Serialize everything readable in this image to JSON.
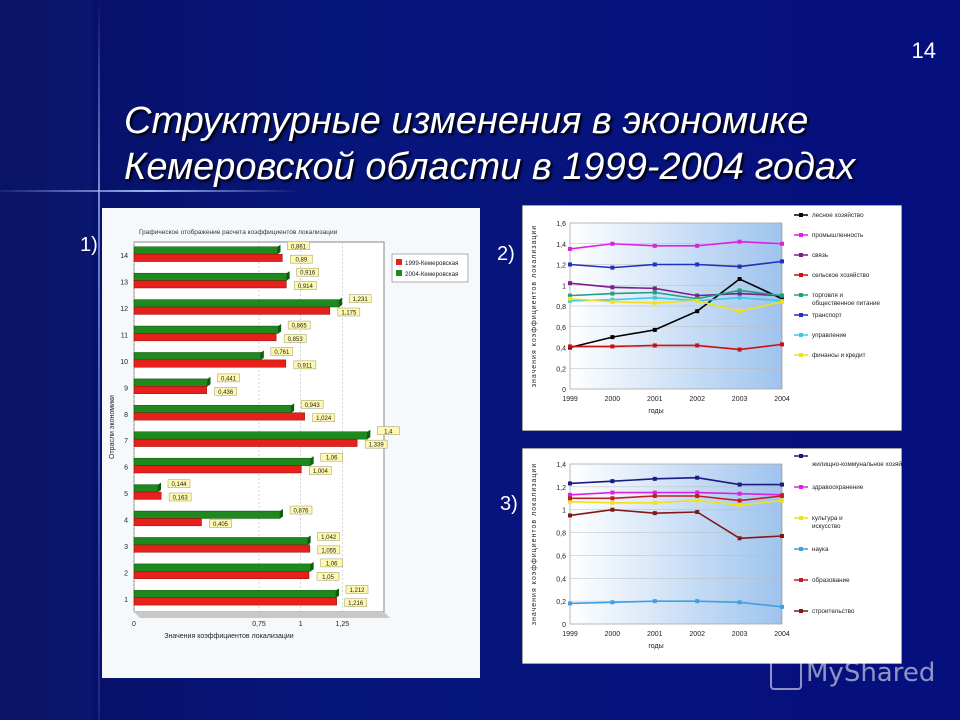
{
  "slide": {
    "number": "14",
    "title_line1": "Структурные изменения в экономике",
    "title_line2": "Кемеровской области в 1999-2004 годах",
    "label1": "1)",
    "label2": "2)",
    "label3": "3)",
    "watermark": "MyShared"
  },
  "chart_data": [
    {
      "type": "bar",
      "orientation": "horizontal",
      "title": "Графическое отображение расчета коэффициентов локализации",
      "xlabel": "Значения коэффициентов локализации",
      "ylabel": "Отрасли экономики",
      "categories": [
        "1",
        "2",
        "3",
        "4",
        "5",
        "6",
        "7",
        "8",
        "9",
        "10",
        "11",
        "12",
        "13",
        "14"
      ],
      "xticks": [
        "0",
        "0,75",
        "1",
        "1,25"
      ],
      "xlim": [
        0,
        1.5
      ],
      "legend_position": "top-right",
      "series": [
        {
          "name": "1999-Кемеровская",
          "color": "#e8201c",
          "values": [
            1.216,
            1.05,
            1.055,
            0.405,
            0.163,
            1.004,
            1.339,
            1.024,
            0.436,
            0.911,
            0.853,
            1.175,
            0.914,
            0.89
          ],
          "labels": [
            "1,216",
            "1,05",
            "1,055",
            "0,405",
            "0,163",
            "1,004",
            "1,339",
            "1,024",
            "0,436",
            "0,911",
            "0,853",
            "1,175",
            "0,914",
            "0,89"
          ]
        },
        {
          "name": "2004-Кемеровская",
          "color": "#1e8a1e",
          "values": [
            1.212,
            1.06,
            1.042,
            0.876,
            0.144,
            1.06,
            1.4,
            0.943,
            0.441,
            0.761,
            0.865,
            1.231,
            0.916,
            0.861
          ],
          "labels": [
            "1,212",
            "1,06",
            "1,042",
            "0,876",
            "0,144",
            "1,06",
            "1,4",
            "0,943",
            "0,441",
            "0,761",
            "0,865",
            "1,231",
            "0,916",
            "0,861"
          ]
        }
      ]
    },
    {
      "type": "line",
      "ylabel": "значения коэффициентов локализации",
      "xlabel": "годы",
      "x": [
        "1999",
        "2000",
        "2001",
        "2002",
        "2003",
        "2004"
      ],
      "ylim": [
        0,
        1.6
      ],
      "yticks": [
        "0",
        "0,2",
        "0,4",
        "0,6",
        "0,8",
        "1",
        "1,2",
        "1,4",
        "1,6"
      ],
      "legend_position": "right",
      "series": [
        {
          "name": "лесное хозяйство",
          "color": "#000000",
          "values": [
            0.4,
            0.5,
            0.57,
            0.75,
            1.06,
            0.87
          ]
        },
        {
          "name": "промышленность",
          "color": "#e020e0",
          "values": [
            1.35,
            1.4,
            1.38,
            1.38,
            1.42,
            1.4
          ]
        },
        {
          "name": "связь",
          "color": "#7a1e8a",
          "values": [
            1.02,
            0.98,
            0.97,
            0.9,
            0.92,
            0.9
          ]
        },
        {
          "name": "сельское хозяйство",
          "color": "#cc1010",
          "values": [
            0.41,
            0.41,
            0.42,
            0.42,
            0.38,
            0.43
          ]
        },
        {
          "name": "торговля и общественное питание",
          "color": "#20a080",
          "values": [
            0.9,
            0.92,
            0.93,
            0.87,
            0.95,
            0.9
          ]
        },
        {
          "name": "транспорт",
          "color": "#2030c0",
          "values": [
            1.2,
            1.17,
            1.2,
            1.2,
            1.18,
            1.23
          ]
        },
        {
          "name": "управление",
          "color": "#40c8e0",
          "values": [
            0.85,
            0.86,
            0.88,
            0.85,
            0.88,
            0.85
          ]
        },
        {
          "name": "финансы и кредит",
          "color": "#f0e020",
          "values": [
            0.87,
            0.84,
            0.83,
            0.85,
            0.75,
            0.84
          ]
        }
      ]
    },
    {
      "type": "line",
      "ylabel": "значения коэффициентов локализации",
      "xlabel": "годы",
      "x": [
        "1999",
        "2000",
        "2001",
        "2002",
        "2003",
        "2004"
      ],
      "ylim": [
        0,
        1.4
      ],
      "yticks": [
        "0",
        "0,2",
        "0,4",
        "0,6",
        "0,8",
        "1",
        "1,2",
        "1,4"
      ],
      "legend_position": "right",
      "series": [
        {
          "name": "жилищно-коммунальное хозяйство",
          "color": "#1a1a80",
          "values": [
            1.23,
            1.25,
            1.27,
            1.28,
            1.22,
            1.22
          ]
        },
        {
          "name": "здравоохранение",
          "color": "#e020e0",
          "values": [
            1.13,
            1.15,
            1.15,
            1.15,
            1.14,
            1.13
          ]
        },
        {
          "name": "культура и искусство",
          "color": "#f0e020",
          "values": [
            1.07,
            1.06,
            1.06,
            1.08,
            1.04,
            1.08
          ]
        },
        {
          "name": "наука",
          "color": "#40a0e0",
          "values": [
            0.18,
            0.19,
            0.2,
            0.2,
            0.19,
            0.15
          ]
        },
        {
          "name": "образование",
          "color": "#c02020",
          "values": [
            1.1,
            1.1,
            1.12,
            1.12,
            1.08,
            1.12
          ]
        },
        {
          "name": "строительство",
          "color": "#801818",
          "values": [
            0.95,
            1.0,
            0.97,
            0.98,
            0.75,
            0.77
          ]
        }
      ]
    }
  ]
}
